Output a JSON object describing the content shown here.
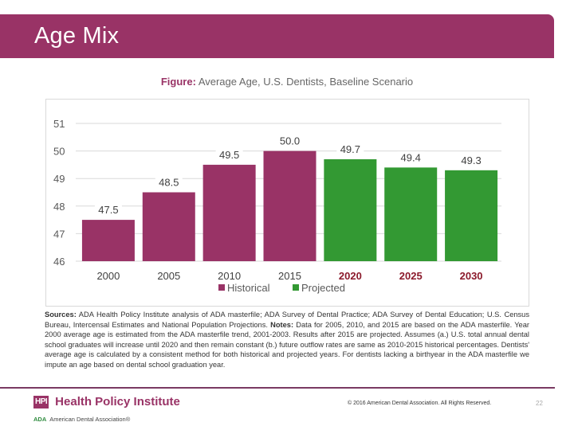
{
  "header": {
    "title": "Age Mix"
  },
  "figure": {
    "label": "Figure:",
    "caption": " Average Age, U.S. Dentists, Baseline Scenario"
  },
  "colors": {
    "brand": "#993366",
    "historical": "#993366",
    "projected": "#339933",
    "projected_tick": "#8b1a2b"
  },
  "chart_data": {
    "type": "bar",
    "title": "Average Age, U.S. Dentists, Baseline Scenario",
    "xlabel": "",
    "ylabel": "",
    "categories": [
      "2000",
      "2005",
      "2010",
      "2015",
      "2020",
      "2025",
      "2030"
    ],
    "values": [
      47.5,
      48.5,
      49.5,
      50.0,
      49.7,
      49.4,
      49.3
    ],
    "value_labels": [
      "47.5",
      "48.5",
      "49.5",
      "50.0",
      "49.7",
      "49.4",
      "49.3"
    ],
    "series_assignment": [
      "Historical",
      "Historical",
      "Historical",
      "Historical",
      "Projected",
      "Projected",
      "Projected"
    ],
    "legend": [
      {
        "name": "Historical",
        "color": "#993366"
      },
      {
        "name": "Projected",
        "color": "#339933"
      }
    ],
    "legend_position": "bottom",
    "ylim": [
      46,
      51
    ],
    "yticks": [
      "46",
      "47",
      "48",
      "49",
      "50",
      "51"
    ],
    "grid": true
  },
  "sources": {
    "sources_label": "Sources:",
    "sources_text": " ADA Health Policy Institute analysis of ADA masterfile; ADA Survey of Dental Practice; ADA Survey of Dental Education; U.S. Census Bureau, Intercensal Estimates and National Population Projections.  ",
    "notes_label": "Notes:",
    "notes_text": " Data for 2005, 2010, and 2015 are based on the ADA masterfile. Year 2000 average age is estimated from the ADA masterfile trend, 2001-2003. Results after 2015 are projected. Assumes (a.) U.S. total annual dental school graduates will increase until 2020 and then remain constant (b.) future outflow rates are same as 2010-2015 historical percentages. Dentists' average age is calculated by a consistent method for both historical and projected years. For dentists lacking a birthyear in the ADA masterfile we impute an age based on dental school graduation year."
  },
  "footer": {
    "hpi_badge": "HPI",
    "hpi_name": "Health Policy Institute",
    "ada_mark": "ADA",
    "ada_name": "American Dental Association®",
    "copyright": "© 2016 American Dental Association. All Rights Reserved.",
    "page_number": "22"
  }
}
